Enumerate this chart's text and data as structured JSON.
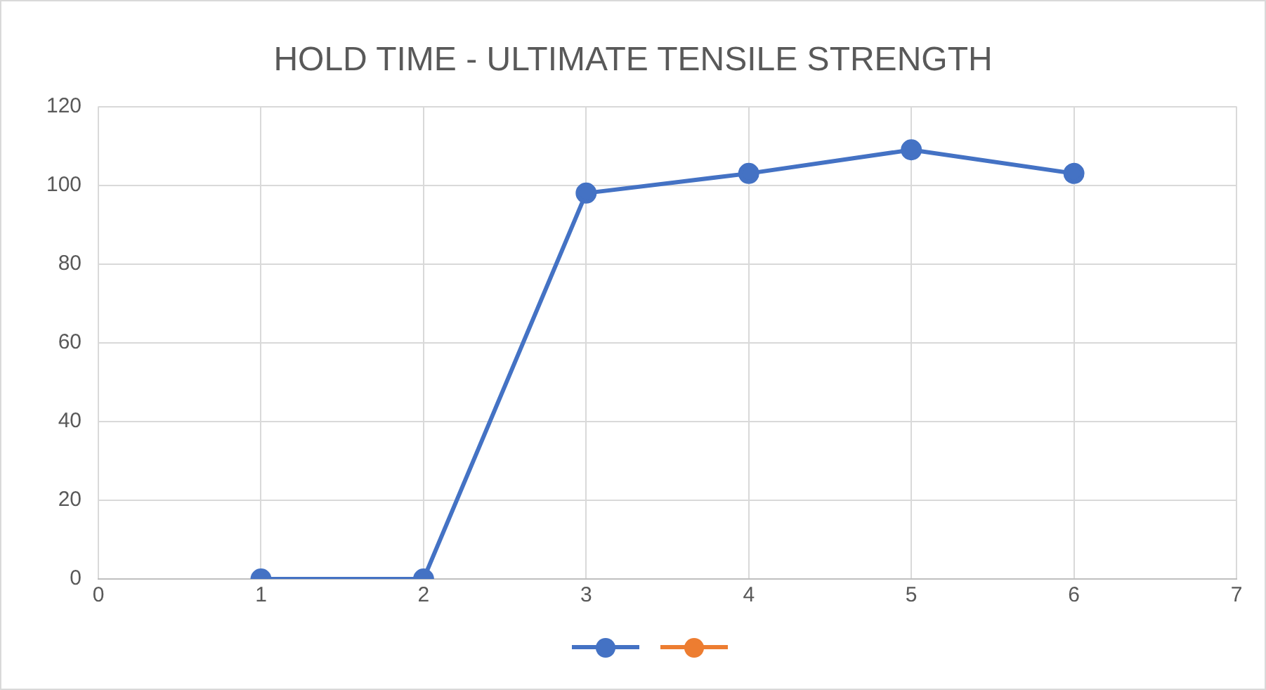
{
  "chart_data": {
    "type": "line",
    "title": "HOLD TIME - ULTIMATE TENSILE STRENGTH",
    "x": [
      1,
      2,
      3,
      4,
      5,
      6
    ],
    "series": [
      {
        "color": "#4472c4",
        "values": [
          0,
          0,
          98,
          103,
          109,
          103
        ]
      }
    ],
    "xlim": [
      0,
      7
    ],
    "xticks": [
      0,
      1,
      2,
      3,
      4,
      5,
      6,
      7
    ],
    "ylim": [
      0,
      120
    ],
    "yticks": [
      0,
      20,
      40,
      60,
      80,
      100,
      120
    ],
    "grid": true,
    "marker": "circle",
    "line_style": "solid"
  }
}
